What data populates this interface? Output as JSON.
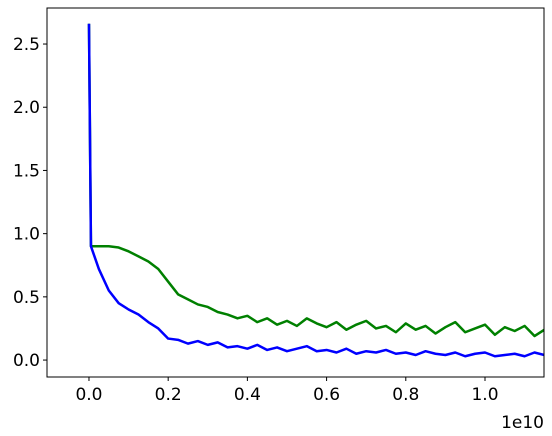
{
  "chart_data": {
    "type": "line",
    "x": [
      0,
      0.005,
      0.025,
      0.05,
      0.075,
      0.1,
      0.125,
      0.15,
      0.175,
      0.2,
      0.225,
      0.25,
      0.275,
      0.3,
      0.325,
      0.35,
      0.375,
      0.4,
      0.425,
      0.45,
      0.475,
      0.5,
      0.525,
      0.55,
      0.575,
      0.6,
      0.625,
      0.65,
      0.675,
      0.7,
      0.725,
      0.75,
      0.775,
      0.8,
      0.825,
      0.85,
      0.875,
      0.9,
      0.925,
      0.95,
      0.975,
      1.0,
      1.025,
      1.05,
      1.075,
      1.1,
      1.125,
      1.15
    ],
    "series": [
      {
        "color": "#008000",
        "values": [
          2.66,
          0.9,
          0.9,
          0.9,
          0.89,
          0.86,
          0.82,
          0.78,
          0.72,
          0.62,
          0.52,
          0.48,
          0.44,
          0.42,
          0.38,
          0.36,
          0.33,
          0.35,
          0.3,
          0.33,
          0.28,
          0.31,
          0.27,
          0.33,
          0.29,
          0.26,
          0.3,
          0.24,
          0.28,
          0.31,
          0.25,
          0.27,
          0.22,
          0.29,
          0.24,
          0.27,
          0.21,
          0.26,
          0.3,
          0.22,
          0.25,
          0.28,
          0.2,
          0.26,
          0.23,
          0.27,
          0.19,
          0.24
        ]
      },
      {
        "color": "#0000ff",
        "values": [
          2.66,
          0.9,
          0.72,
          0.55,
          0.45,
          0.4,
          0.36,
          0.3,
          0.25,
          0.17,
          0.16,
          0.13,
          0.15,
          0.12,
          0.14,
          0.1,
          0.11,
          0.09,
          0.12,
          0.08,
          0.1,
          0.07,
          0.09,
          0.11,
          0.07,
          0.08,
          0.06,
          0.09,
          0.05,
          0.07,
          0.06,
          0.08,
          0.05,
          0.06,
          0.04,
          0.07,
          0.05,
          0.04,
          0.06,
          0.03,
          0.05,
          0.06,
          0.03,
          0.04,
          0.05,
          0.03,
          0.06,
          0.04
        ]
      }
    ],
    "xlim": [
      -0.106,
      1.149
    ],
    "ylim": [
      -0.134,
      2.785
    ],
    "xticks": [
      {
        "value": 0,
        "label": "0.0"
      },
      {
        "value": 0.2,
        "label": "0.2"
      },
      {
        "value": 0.4,
        "label": "0.4"
      },
      {
        "value": 0.6,
        "label": "0.6"
      },
      {
        "value": 0.8,
        "label": "0.8"
      },
      {
        "value": 1.0,
        "label": "1.0"
      }
    ],
    "yticks": [
      {
        "value": 0,
        "label": "0.0"
      },
      {
        "value": 0.5,
        "label": "0.5"
      },
      {
        "value": 1.0,
        "label": "1.0"
      },
      {
        "value": 1.5,
        "label": "1.5"
      },
      {
        "value": 2.0,
        "label": "2.0"
      },
      {
        "value": 2.5,
        "label": "2.5"
      }
    ],
    "x_offset_label": "1e10"
  }
}
